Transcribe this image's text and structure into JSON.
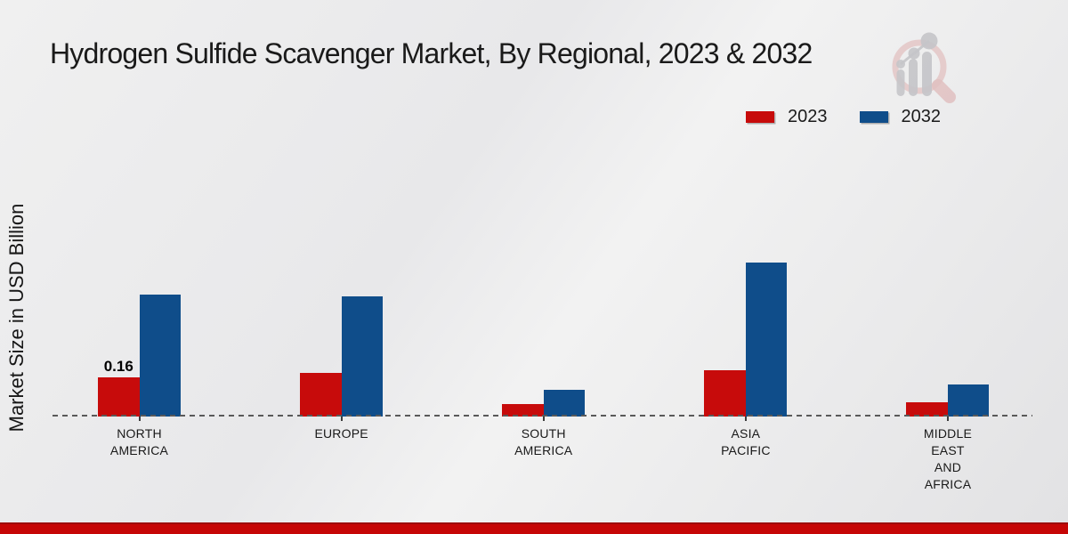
{
  "title": "Hydrogen Sulfide Scavenger Market, By Regional, 2023 & 2032",
  "y_axis_label": "Market Size in USD Billion",
  "legend": {
    "items": [
      {
        "label": "2023",
        "color": "#c70b0b"
      },
      {
        "label": "2032",
        "color": "#0f4d8a"
      }
    ]
  },
  "footer": {
    "band_color": "#c60606",
    "band_top_line_color": "#9d0d0d"
  },
  "branding": {
    "logo_icon": "bar-chart-magnifier-watermark",
    "ring_color": "#e3c6c6",
    "glyph_color": "#c5c5c9"
  },
  "chart_data": {
    "type": "bar",
    "title": "Hydrogen Sulfide Scavenger Market, By Regional, 2023 & 2032",
    "ylabel": "Market Size in USD Billion",
    "categories": [
      "NORTH AMERICA",
      "EUROPE",
      "SOUTH AMERICA",
      "ASIA PACIFIC",
      "MIDDLE EAST AND AFRICA"
    ],
    "category_display_lines": [
      [
        "NORTH",
        "AMERICA"
      ],
      [
        "EUROPE"
      ],
      [
        "SOUTH",
        "AMERICA"
      ],
      [
        "ASIA",
        "PACIFIC"
      ],
      [
        "MIDDLE",
        "EAST",
        "AND",
        "AFRICA"
      ]
    ],
    "series": [
      {
        "name": "2023",
        "color": "#c70b0b",
        "values": [
          0.16,
          0.18,
          0.05,
          0.19,
          0.06
        ]
      },
      {
        "name": "2032",
        "color": "#0f4d8a",
        "values": [
          0.5,
          0.49,
          0.11,
          0.63,
          0.13
        ]
      }
    ],
    "data_labels": [
      {
        "series_index": 0,
        "category_index": 0,
        "text": "0.16"
      }
    ],
    "ylim": [
      0,
      0.72
    ],
    "grid": false,
    "legend_position": "top-right",
    "baseline_style": "dashed",
    "y_axis_ticks_visible": false
  }
}
